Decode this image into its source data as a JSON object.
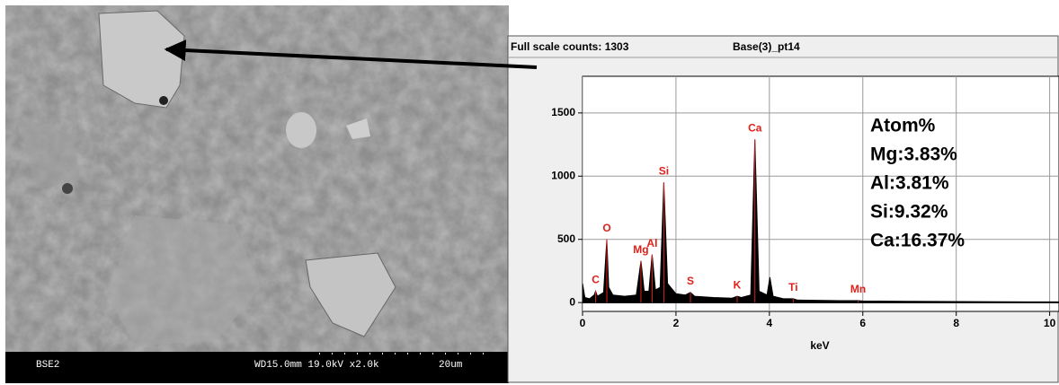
{
  "sem_image": {
    "detector": "BSE2",
    "info": "WD15.0mm 19.0kV x2.0k",
    "scale": "20um"
  },
  "chart_data": {
    "type": "spectrum",
    "header": "Full scale counts: 1303",
    "sample": "Base(3)_pt14",
    "x_label": "keV",
    "xlim": [
      0,
      10.2
    ],
    "xticks": [
      0,
      2,
      4,
      6,
      8,
      10
    ],
    "ylim": [
      -70,
      1790
    ],
    "yticks": [
      0,
      500,
      1000,
      1500
    ],
    "grid": true,
    "color": "#000000",
    "marker_color": "#e0201a",
    "x": [
      0,
      0.05,
      0.15,
      0.25,
      0.28,
      0.32,
      0.45,
      0.52,
      0.56,
      0.65,
      0.9,
      1.15,
      1.25,
      1.32,
      1.42,
      1.49,
      1.56,
      1.66,
      1.74,
      1.82,
      2.0,
      2.2,
      2.31,
      2.4,
      2.8,
      3.2,
      3.31,
      3.4,
      3.6,
      3.69,
      3.78,
      3.95,
      4.01,
      4.08,
      4.3,
      4.51,
      4.6,
      5.0,
      5.5,
      5.9,
      6.0,
      7,
      8,
      9,
      10.2
    ],
    "values": [
      150,
      40,
      30,
      60,
      90,
      50,
      80,
      500,
      120,
      60,
      50,
      60,
      330,
      90,
      90,
      380,
      100,
      120,
      950,
      150,
      70,
      60,
      80,
      50,
      40,
      35,
      50,
      40,
      60,
      1290,
      90,
      60,
      200,
      50,
      30,
      30,
      20,
      18,
      15,
      15,
      12,
      10,
      8,
      6,
      5
    ],
    "peaks": [
      {
        "label": "C",
        "x": 0.28
      },
      {
        "label": "O",
        "x": 0.52
      },
      {
        "label": "Mg",
        "x": 1.25
      },
      {
        "label": "Al",
        "x": 1.49
      },
      {
        "label": "Si",
        "x": 1.74
      },
      {
        "label": "S",
        "x": 2.31
      },
      {
        "label": "K",
        "x": 3.31
      },
      {
        "label": "Ca",
        "x": 3.69
      },
      {
        "label": "Ti",
        "x": 4.51
      },
      {
        "label": "Mn",
        "x": 5.9
      }
    ],
    "composition": [
      "Atom%",
      "Mg:3.83%",
      "Al:3.81%",
      "Si:9.32%",
      "Ca:16.37%"
    ]
  }
}
